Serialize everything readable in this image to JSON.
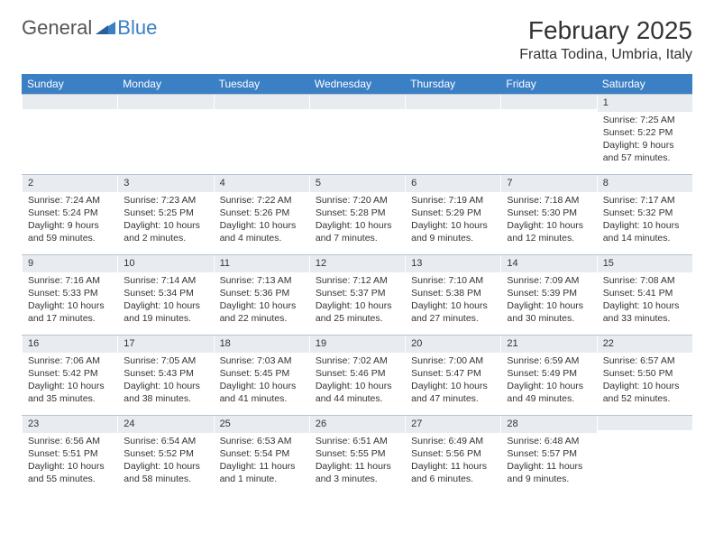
{
  "brand": {
    "text1": "General",
    "text2": "Blue"
  },
  "title": "February 2025",
  "location": "Fratta Todina, Umbria, Italy",
  "colors": {
    "header_bg": "#3b7fc4",
    "daynum_bg": "#e8ebef",
    "rule": "#b8c4d0",
    "text": "#333333"
  },
  "day_names": [
    "Sunday",
    "Monday",
    "Tuesday",
    "Wednesday",
    "Thursday",
    "Friday",
    "Saturday"
  ],
  "weeks": [
    [
      {
        "n": "",
        "lines": []
      },
      {
        "n": "",
        "lines": []
      },
      {
        "n": "",
        "lines": []
      },
      {
        "n": "",
        "lines": []
      },
      {
        "n": "",
        "lines": []
      },
      {
        "n": "",
        "lines": []
      },
      {
        "n": "1",
        "lines": [
          "Sunrise: 7:25 AM",
          "Sunset: 5:22 PM",
          "Daylight: 9 hours and 57 minutes."
        ]
      }
    ],
    [
      {
        "n": "2",
        "lines": [
          "Sunrise: 7:24 AM",
          "Sunset: 5:24 PM",
          "Daylight: 9 hours and 59 minutes."
        ]
      },
      {
        "n": "3",
        "lines": [
          "Sunrise: 7:23 AM",
          "Sunset: 5:25 PM",
          "Daylight: 10 hours and 2 minutes."
        ]
      },
      {
        "n": "4",
        "lines": [
          "Sunrise: 7:22 AM",
          "Sunset: 5:26 PM",
          "Daylight: 10 hours and 4 minutes."
        ]
      },
      {
        "n": "5",
        "lines": [
          "Sunrise: 7:20 AM",
          "Sunset: 5:28 PM",
          "Daylight: 10 hours and 7 minutes."
        ]
      },
      {
        "n": "6",
        "lines": [
          "Sunrise: 7:19 AM",
          "Sunset: 5:29 PM",
          "Daylight: 10 hours and 9 minutes."
        ]
      },
      {
        "n": "7",
        "lines": [
          "Sunrise: 7:18 AM",
          "Sunset: 5:30 PM",
          "Daylight: 10 hours and 12 minutes."
        ]
      },
      {
        "n": "8",
        "lines": [
          "Sunrise: 7:17 AM",
          "Sunset: 5:32 PM",
          "Daylight: 10 hours and 14 minutes."
        ]
      }
    ],
    [
      {
        "n": "9",
        "lines": [
          "Sunrise: 7:16 AM",
          "Sunset: 5:33 PM",
          "Daylight: 10 hours and 17 minutes."
        ]
      },
      {
        "n": "10",
        "lines": [
          "Sunrise: 7:14 AM",
          "Sunset: 5:34 PM",
          "Daylight: 10 hours and 19 minutes."
        ]
      },
      {
        "n": "11",
        "lines": [
          "Sunrise: 7:13 AM",
          "Sunset: 5:36 PM",
          "Daylight: 10 hours and 22 minutes."
        ]
      },
      {
        "n": "12",
        "lines": [
          "Sunrise: 7:12 AM",
          "Sunset: 5:37 PM",
          "Daylight: 10 hours and 25 minutes."
        ]
      },
      {
        "n": "13",
        "lines": [
          "Sunrise: 7:10 AM",
          "Sunset: 5:38 PM",
          "Daylight: 10 hours and 27 minutes."
        ]
      },
      {
        "n": "14",
        "lines": [
          "Sunrise: 7:09 AM",
          "Sunset: 5:39 PM",
          "Daylight: 10 hours and 30 minutes."
        ]
      },
      {
        "n": "15",
        "lines": [
          "Sunrise: 7:08 AM",
          "Sunset: 5:41 PM",
          "Daylight: 10 hours and 33 minutes."
        ]
      }
    ],
    [
      {
        "n": "16",
        "lines": [
          "Sunrise: 7:06 AM",
          "Sunset: 5:42 PM",
          "Daylight: 10 hours and 35 minutes."
        ]
      },
      {
        "n": "17",
        "lines": [
          "Sunrise: 7:05 AM",
          "Sunset: 5:43 PM",
          "Daylight: 10 hours and 38 minutes."
        ]
      },
      {
        "n": "18",
        "lines": [
          "Sunrise: 7:03 AM",
          "Sunset: 5:45 PM",
          "Daylight: 10 hours and 41 minutes."
        ]
      },
      {
        "n": "19",
        "lines": [
          "Sunrise: 7:02 AM",
          "Sunset: 5:46 PM",
          "Daylight: 10 hours and 44 minutes."
        ]
      },
      {
        "n": "20",
        "lines": [
          "Sunrise: 7:00 AM",
          "Sunset: 5:47 PM",
          "Daylight: 10 hours and 47 minutes."
        ]
      },
      {
        "n": "21",
        "lines": [
          "Sunrise: 6:59 AM",
          "Sunset: 5:49 PM",
          "Daylight: 10 hours and 49 minutes."
        ]
      },
      {
        "n": "22",
        "lines": [
          "Sunrise: 6:57 AM",
          "Sunset: 5:50 PM",
          "Daylight: 10 hours and 52 minutes."
        ]
      }
    ],
    [
      {
        "n": "23",
        "lines": [
          "Sunrise: 6:56 AM",
          "Sunset: 5:51 PM",
          "Daylight: 10 hours and 55 minutes."
        ]
      },
      {
        "n": "24",
        "lines": [
          "Sunrise: 6:54 AM",
          "Sunset: 5:52 PM",
          "Daylight: 10 hours and 58 minutes."
        ]
      },
      {
        "n": "25",
        "lines": [
          "Sunrise: 6:53 AM",
          "Sunset: 5:54 PM",
          "Daylight: 11 hours and 1 minute."
        ]
      },
      {
        "n": "26",
        "lines": [
          "Sunrise: 6:51 AM",
          "Sunset: 5:55 PM",
          "Daylight: 11 hours and 3 minutes."
        ]
      },
      {
        "n": "27",
        "lines": [
          "Sunrise: 6:49 AM",
          "Sunset: 5:56 PM",
          "Daylight: 11 hours and 6 minutes."
        ]
      },
      {
        "n": "28",
        "lines": [
          "Sunrise: 6:48 AM",
          "Sunset: 5:57 PM",
          "Daylight: 11 hours and 9 minutes."
        ]
      },
      {
        "n": "",
        "lines": []
      }
    ]
  ]
}
